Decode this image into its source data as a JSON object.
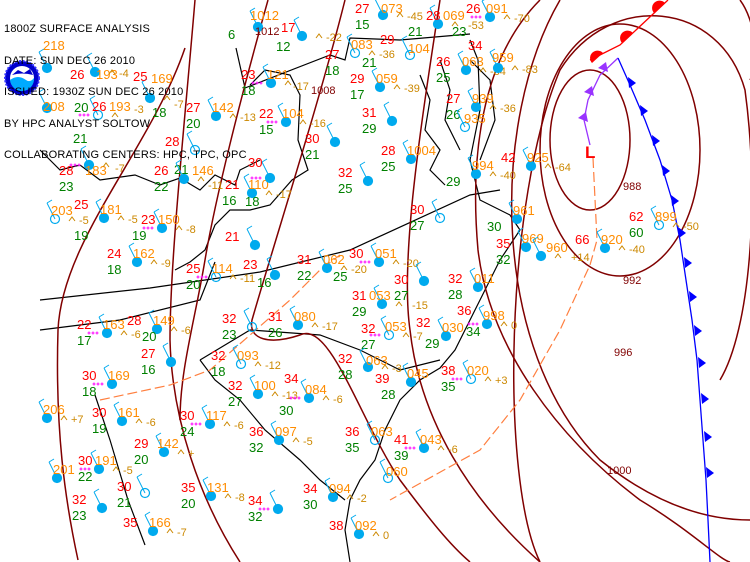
{
  "header": {
    "lines": [
      "1800Z SURFACE ANALYSIS",
      "DATE: SUN DEC 26 2010",
      "ISSUED: 1930Z SUN DEC 26 2010",
      "BY HPC ANALYST SOLTOW",
      "COLLABORATING CENTERS: HPC, TPC, OPC"
    ]
  },
  "logo": {
    "text": "NOAA"
  },
  "colors": {
    "temperature": "#ff0000",
    "dewpoint": "#008000",
    "pressure": "#ff8c00",
    "tendency": "#cc8800",
    "station": "#00aaee",
    "isobar": "#800000",
    "cold_front": "#0000ff",
    "warm_front": "#ff0000",
    "occluded_front": "#9933ff",
    "trough": "#ff7f3f",
    "weather_symbol": "#ff00ff",
    "boundaries": "#000000"
  },
  "low_center": {
    "label": "L"
  },
  "isobar_labels": [
    "1012",
    "1008",
    "988",
    "992",
    "996",
    "1000"
  ],
  "stations": [
    {
      "t": "",
      "p": "218",
      "d": "",
      "tend": ""
    },
    {
      "t": "26",
      "p": "193",
      "d": "20",
      "tend": "-4"
    },
    {
      "t": "",
      "p": "208",
      "d": "",
      "tend": ""
    },
    {
      "t": "26",
      "p": "193",
      "d": "21",
      "tend": "-3"
    },
    {
      "t": "25",
      "p": "169",
      "d": "18",
      "tend": "-7"
    },
    {
      "t": "27",
      "p": "142",
      "d": "20",
      "tend": "-13"
    },
    {
      "t": "22",
      "p": "104",
      "d": "15",
      "tend": "-16"
    },
    {
      "t": "30",
      "p": "",
      "d": "21",
      "tend": ""
    },
    {
      "t": "28",
      "p": "",
      "d": "21",
      "tend": ""
    },
    {
      "t": "28",
      "p": "183",
      "d": "23",
      "tend": "-7"
    },
    {
      "t": "26",
      "p": "146",
      "d": "22",
      "tend": "-11"
    },
    {
      "t": "21",
      "p": "110",
      "d": "16",
      "tend": "-17"
    },
    {
      "t": "30",
      "p": "",
      "d": "18",
      "tend": ""
    },
    {
      "t": "",
      "p": "203",
      "d": "",
      "tend": "-5"
    },
    {
      "t": "25",
      "p": "181",
      "d": "19",
      "tend": "-5"
    },
    {
      "t": "23",
      "p": "150",
      "d": "19",
      "tend": "-8"
    },
    {
      "t": "21",
      "p": "",
      "d": "",
      "tend": ""
    },
    {
      "t": "24",
      "p": "162",
      "d": "18",
      "tend": "-9"
    },
    {
      "t": "25",
      "p": "114",
      "d": "20",
      "tend": "-11"
    },
    {
      "t": "23",
      "p": "",
      "d": "16",
      "tend": ""
    },
    {
      "t": "17",
      "p": "",
      "d": "12",
      "tend": "-22"
    },
    {
      "t": "",
      "p": "1012",
      "d": "6",
      "tend": ""
    },
    {
      "t": "27",
      "p": "073",
      "d": "15",
      "tend": "-45"
    },
    {
      "t": "27",
      "p": "083",
      "d": "18",
      "tend": "-36"
    },
    {
      "t": "23",
      "p": "121",
      "d": "18",
      "tend": "-17"
    },
    {
      "t": "29",
      "p": "059",
      "d": "17",
      "tend": "-39"
    },
    {
      "t": "28",
      "p": "069",
      "d": "21",
      "tend": "-53"
    },
    {
      "t": "26",
      "p": "091",
      "d": "23",
      "tend": "-70"
    },
    {
      "t": "29",
      "p": "104",
      "d": "21",
      "tend": ""
    },
    {
      "t": "26",
      "p": "063",
      "d": "25",
      "tend": "-84"
    },
    {
      "t": "34",
      "p": "959",
      "d": "",
      "tend": "-83"
    },
    {
      "t": "31",
      "p": "",
      "d": "29",
      "tend": ""
    },
    {
      "t": "27",
      "p": "939",
      "d": "26",
      "tend": "-36"
    },
    {
      "t": "",
      "p": "935",
      "d": "",
      "tend": ""
    },
    {
      "t": "28",
      "p": "1004",
      "d": "25",
      "tend": ""
    },
    {
      "t": "32",
      "p": "",
      "d": "25",
      "tend": ""
    },
    {
      "t": "",
      "p": "994",
      "d": "29",
      "tend": "-40"
    },
    {
      "t": "42",
      "p": "925",
      "d": "",
      "tend": "-64"
    },
    {
      "t": "62",
      "p": "899",
      "d": "60",
      "tend": "-50"
    },
    {
      "t": "66",
      "p": "920",
      "d": "",
      "tend": "-40"
    },
    {
      "t": "",
      "p": "961",
      "d": "30",
      "tend": ""
    },
    {
      "t": "35",
      "p": "969",
      "d": "32",
      "tend": ""
    },
    {
      "t": "",
      "p": "960",
      "d": "",
      "tend": "+14"
    },
    {
      "t": "30",
      "p": "",
      "d": "27",
      "tend": ""
    },
    {
      "t": "31",
      "p": "062",
      "d": "22",
      "tend": "-20"
    },
    {
      "t": "30",
      "p": "051",
      "d": "25",
      "tend": "-20"
    },
    {
      "t": "30",
      "p": "",
      "d": "27",
      "tend": ""
    },
    {
      "t": "31",
      "p": "053",
      "d": "29",
      "tend": "-15"
    },
    {
      "t": "32",
      "p": "053",
      "d": "27",
      "tend": "-7"
    },
    {
      "t": "32",
      "p": "030",
      "d": "29",
      "tend": ""
    },
    {
      "t": "32",
      "p": "011",
      "d": "28",
      "tend": ""
    },
    {
      "t": "36",
      "p": "998",
      "d": "34",
      "tend": "0"
    },
    {
      "t": "31",
      "p": "080",
      "d": "26",
      "tend": "-17"
    },
    {
      "t": "32",
      "p": "",
      "d": "23",
      "tend": ""
    },
    {
      "t": "22",
      "p": "163",
      "d": "17",
      "tend": "-6"
    },
    {
      "t": "28",
      "p": "149",
      "d": "20",
      "tend": "-6"
    },
    {
      "t": "27",
      "p": "",
      "d": "16",
      "tend": ""
    },
    {
      "t": "30",
      "p": "169",
      "d": "18",
      "tend": ""
    },
    {
      "t": "32",
      "p": "093",
      "d": "18",
      "tend": "-12"
    },
    {
      "t": "32",
      "p": "100",
      "d": "27",
      "tend": "-13"
    },
    {
      "t": "34",
      "p": "084",
      "d": "30",
      "tend": "-6"
    },
    {
      "t": "32",
      "p": "063",
      "d": "28",
      "tend": "-3"
    },
    {
      "t": "39",
      "p": "045",
      "d": "28",
      "tend": ""
    },
    {
      "t": "38",
      "p": "020",
      "d": "35",
      "tend": "+3"
    },
    {
      "t": "",
      "p": "206",
      "d": "",
      "tend": "+7"
    },
    {
      "t": "30",
      "p": "161",
      "d": "19",
      "tend": "-6"
    },
    {
      "t": "30",
      "p": "117",
      "d": "24",
      "tend": "-6"
    },
    {
      "t": "36",
      "p": "097",
      "d": "32",
      "tend": "-5"
    },
    {
      "t": "36",
      "p": "063",
      "d": "35",
      "tend": ""
    },
    {
      "t": "41",
      "p": "043",
      "d": "39",
      "tend": "-6"
    },
    {
      "t": "29",
      "p": "142",
      "d": "20",
      "tend": "+"
    },
    {
      "t": "",
      "p": "201",
      "d": "",
      "tend": ""
    },
    {
      "t": "30",
      "p": "191",
      "d": "22",
      "tend": "-5"
    },
    {
      "t": "30",
      "p": "",
      "d": "21",
      "tend": ""
    },
    {
      "t": "35",
      "p": "131",
      "d": "20",
      "tend": "-8"
    },
    {
      "t": "34",
      "p": "",
      "d": "32",
      "tend": ""
    },
    {
      "t": "32",
      "p": "",
      "d": "23",
      "tend": ""
    },
    {
      "t": "35",
      "p": "166",
      "d": "",
      "tend": "-7"
    },
    {
      "t": "",
      "p": "060",
      "d": "",
      "tend": ""
    },
    {
      "t": "34",
      "p": "094",
      "d": "30",
      "tend": "-2"
    },
    {
      "t": "38",
      "p": "092",
      "d": "",
      "tend": "0"
    }
  ]
}
